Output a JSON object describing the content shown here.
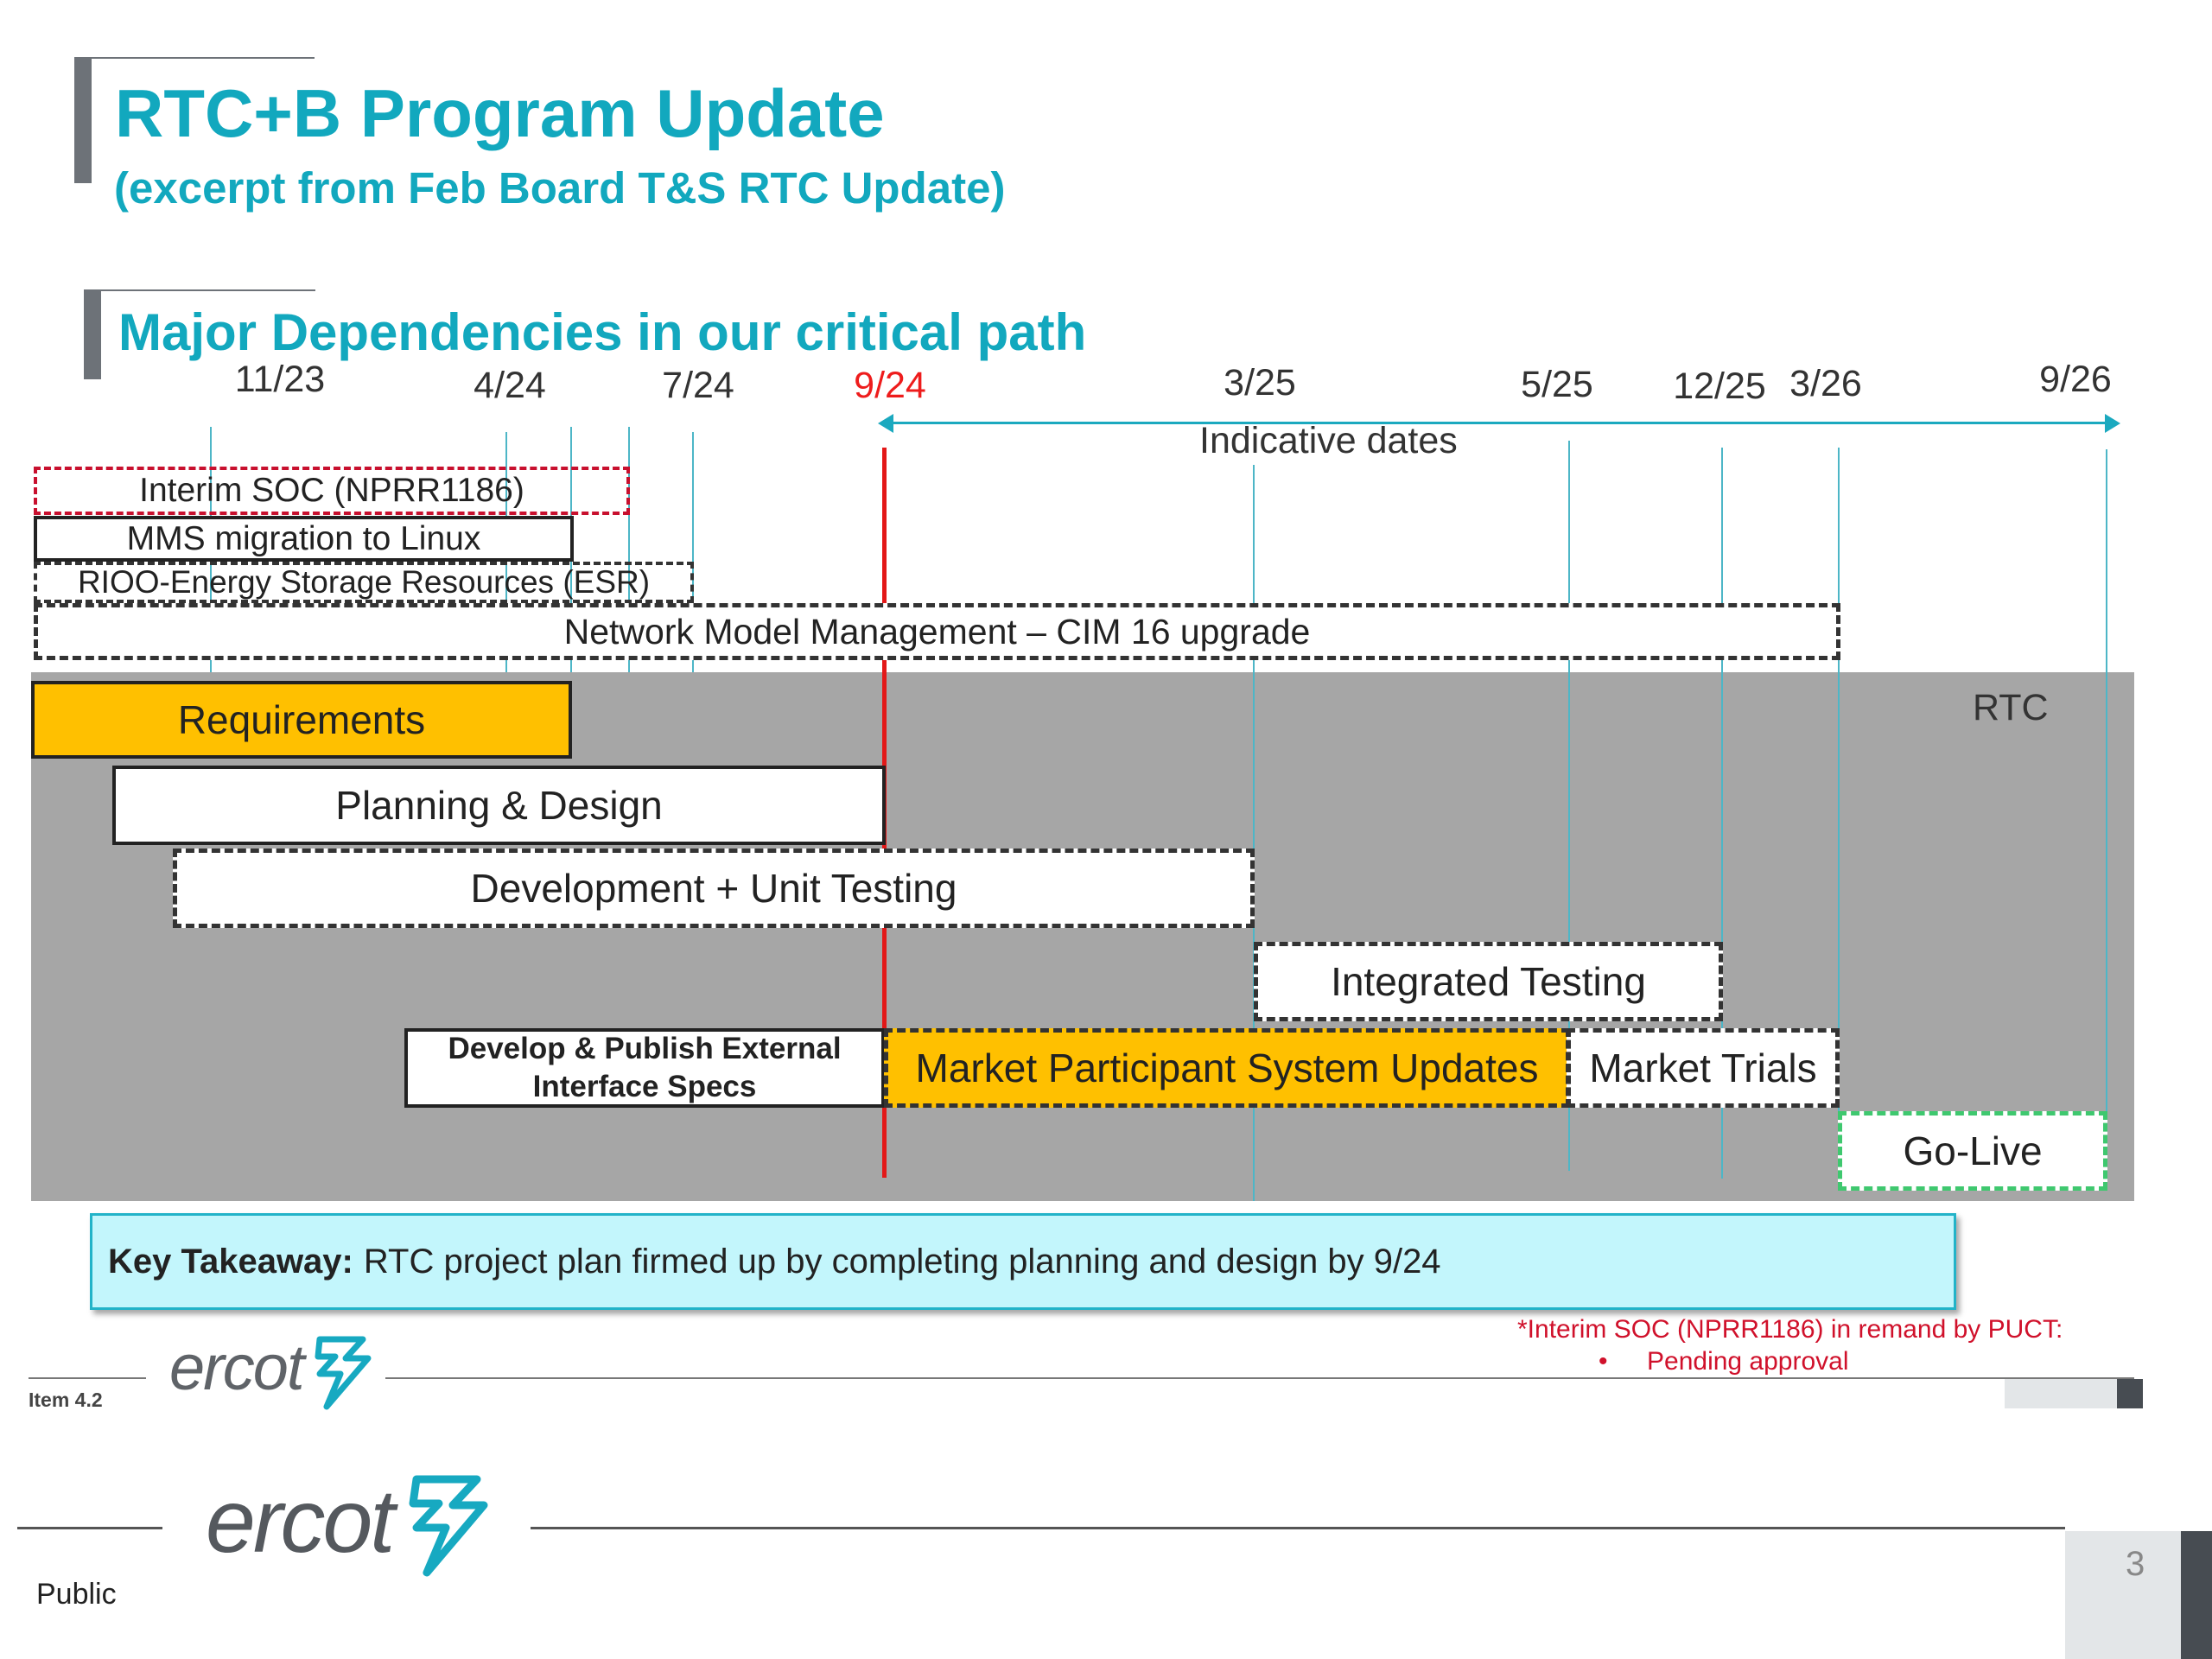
{
  "header": {
    "title": "RTC+B Program Update",
    "subtitle": "(excerpt from Feb Board T&S RTC Update)"
  },
  "section": {
    "title": "Major Dependencies in our critical path"
  },
  "timeline": {
    "dates": [
      "11/23",
      "4/24",
      "7/24",
      "9/24",
      "3/25",
      "5/25",
      "12/25",
      "3/26",
      "9/26"
    ],
    "highlight_date": "9/24",
    "indicative_label": "Indicative dates",
    "region_label": "RTC"
  },
  "dependencies": [
    {
      "label": "Interim SOC (NPRR1186)",
      "style": "red-dashed"
    },
    {
      "label": "MMS migration to Linux",
      "style": "solid"
    },
    {
      "label": "RIOO-Energy Storage Resources (ESR)",
      "style": "dashed"
    },
    {
      "label": "Network Model Management – CIM 16 upgrade",
      "style": "dashed"
    }
  ],
  "phases": [
    {
      "label": "Requirements",
      "style": "solid-gold"
    },
    {
      "label": "Planning & Design",
      "style": "solid-white"
    },
    {
      "label": "Development + Unit Testing",
      "style": "dashed-white"
    },
    {
      "label": "Integrated Testing",
      "style": "dashed-white"
    },
    {
      "label": "Develop & Publish External Interface Specs",
      "style": "solid-white-bold"
    },
    {
      "label": "Market Participant System Updates",
      "style": "dashed-gold"
    },
    {
      "label": "Market Trials",
      "style": "dashed-white"
    },
    {
      "label": "Go-Live",
      "style": "dashed-green"
    }
  ],
  "takeaway": {
    "label": "Key Takeaway:",
    "text": "RTC project plan firmed up by completing planning and design by 9/24"
  },
  "note": {
    "line1": "*Interim SOC (NPRR1186) in remand by PUCT:",
    "bullet": "•",
    "line2": "Pending approval"
  },
  "inner_footer": {
    "logo": "ercot",
    "item": "Item 4.2"
  },
  "footer": {
    "logo": "ercot",
    "classification": "Public",
    "page_number": "3"
  },
  "colors": {
    "accent": "#12a8be",
    "gold": "#ffc000",
    "red": "#e31818",
    "gray_area": "#a6a6a6",
    "takeaway_bg": "#c3f6fc"
  },
  "icons": [
    "ercot-bolt-icon"
  ]
}
